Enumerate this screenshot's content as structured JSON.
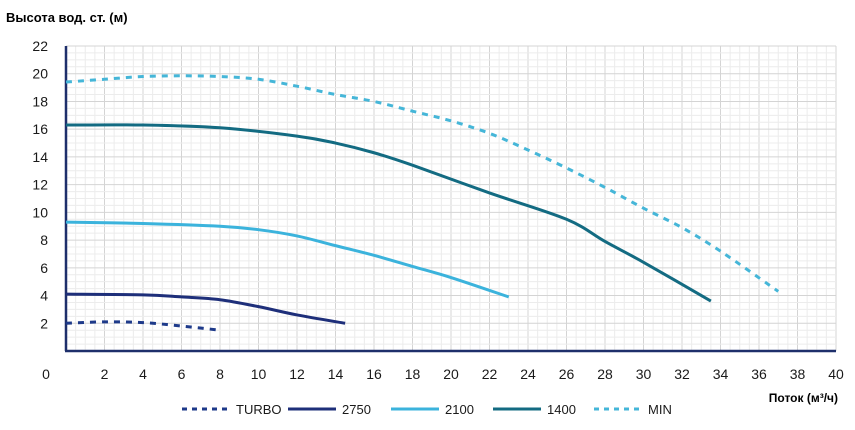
{
  "chart_data": {
    "type": "line",
    "ylabel": "Высота вод. ст. (м)",
    "xlabel": "Поток (м³/ч)",
    "xlim": [
      0,
      40
    ],
    "ylim": [
      0,
      22
    ],
    "x_ticks": [
      0,
      2,
      4,
      6,
      8,
      10,
      12,
      14,
      16,
      18,
      20,
      22,
      24,
      26,
      28,
      30,
      32,
      34,
      36,
      38,
      40
    ],
    "y_ticks": [
      2,
      4,
      6,
      8,
      10,
      12,
      14,
      16,
      18,
      20,
      22
    ],
    "grid": true,
    "legend_position": "bottom-center",
    "series": [
      {
        "name": "TURBO",
        "color": "#1e3a8a",
        "style": "dashed",
        "points": [
          [
            0,
            2.0
          ],
          [
            2,
            2.1
          ],
          [
            4,
            2.05
          ],
          [
            6,
            1.8
          ],
          [
            8,
            1.5
          ]
        ]
      },
      {
        "name": "2750",
        "color": "#1e2f7a",
        "style": "solid",
        "points": [
          [
            0,
            4.1
          ],
          [
            4,
            4.05
          ],
          [
            6,
            3.9
          ],
          [
            8,
            3.7
          ],
          [
            10,
            3.2
          ],
          [
            12,
            2.6
          ],
          [
            14.5,
            2.0
          ]
        ]
      },
      {
        "name": "2100",
        "color": "#3bb3dc",
        "style": "solid",
        "points": [
          [
            0,
            9.3
          ],
          [
            4,
            9.2
          ],
          [
            8,
            9.0
          ],
          [
            10,
            8.75
          ],
          [
            12,
            8.3
          ],
          [
            14,
            7.6
          ],
          [
            16,
            6.9
          ],
          [
            18,
            6.1
          ],
          [
            20,
            5.3
          ],
          [
            23,
            3.9
          ]
        ]
      },
      {
        "name": "1400",
        "color": "#136b82",
        "style": "solid",
        "points": [
          [
            0,
            16.3
          ],
          [
            4,
            16.3
          ],
          [
            8,
            16.1
          ],
          [
            12,
            15.5
          ],
          [
            14,
            15.0
          ],
          [
            16,
            14.3
          ],
          [
            18,
            13.4
          ],
          [
            22,
            11.4
          ],
          [
            26,
            9.5
          ],
          [
            28,
            7.9
          ],
          [
            30,
            6.4
          ],
          [
            33.5,
            3.6
          ]
        ]
      },
      {
        "name": "MIN",
        "color": "#45b6d8",
        "style": "dashed",
        "points": [
          [
            0,
            19.4
          ],
          [
            2,
            19.6
          ],
          [
            4,
            19.8
          ],
          [
            6,
            19.85
          ],
          [
            8,
            19.8
          ],
          [
            10,
            19.6
          ],
          [
            12,
            19.1
          ],
          [
            14,
            18.5
          ],
          [
            16,
            18.0
          ],
          [
            18,
            17.3
          ],
          [
            20,
            16.6
          ],
          [
            22,
            15.7
          ],
          [
            24,
            14.5
          ],
          [
            26,
            13.2
          ],
          [
            28,
            11.8
          ],
          [
            30,
            10.3
          ],
          [
            32,
            8.9
          ],
          [
            34,
            7.2
          ],
          [
            37,
            4.3
          ]
        ]
      }
    ]
  }
}
